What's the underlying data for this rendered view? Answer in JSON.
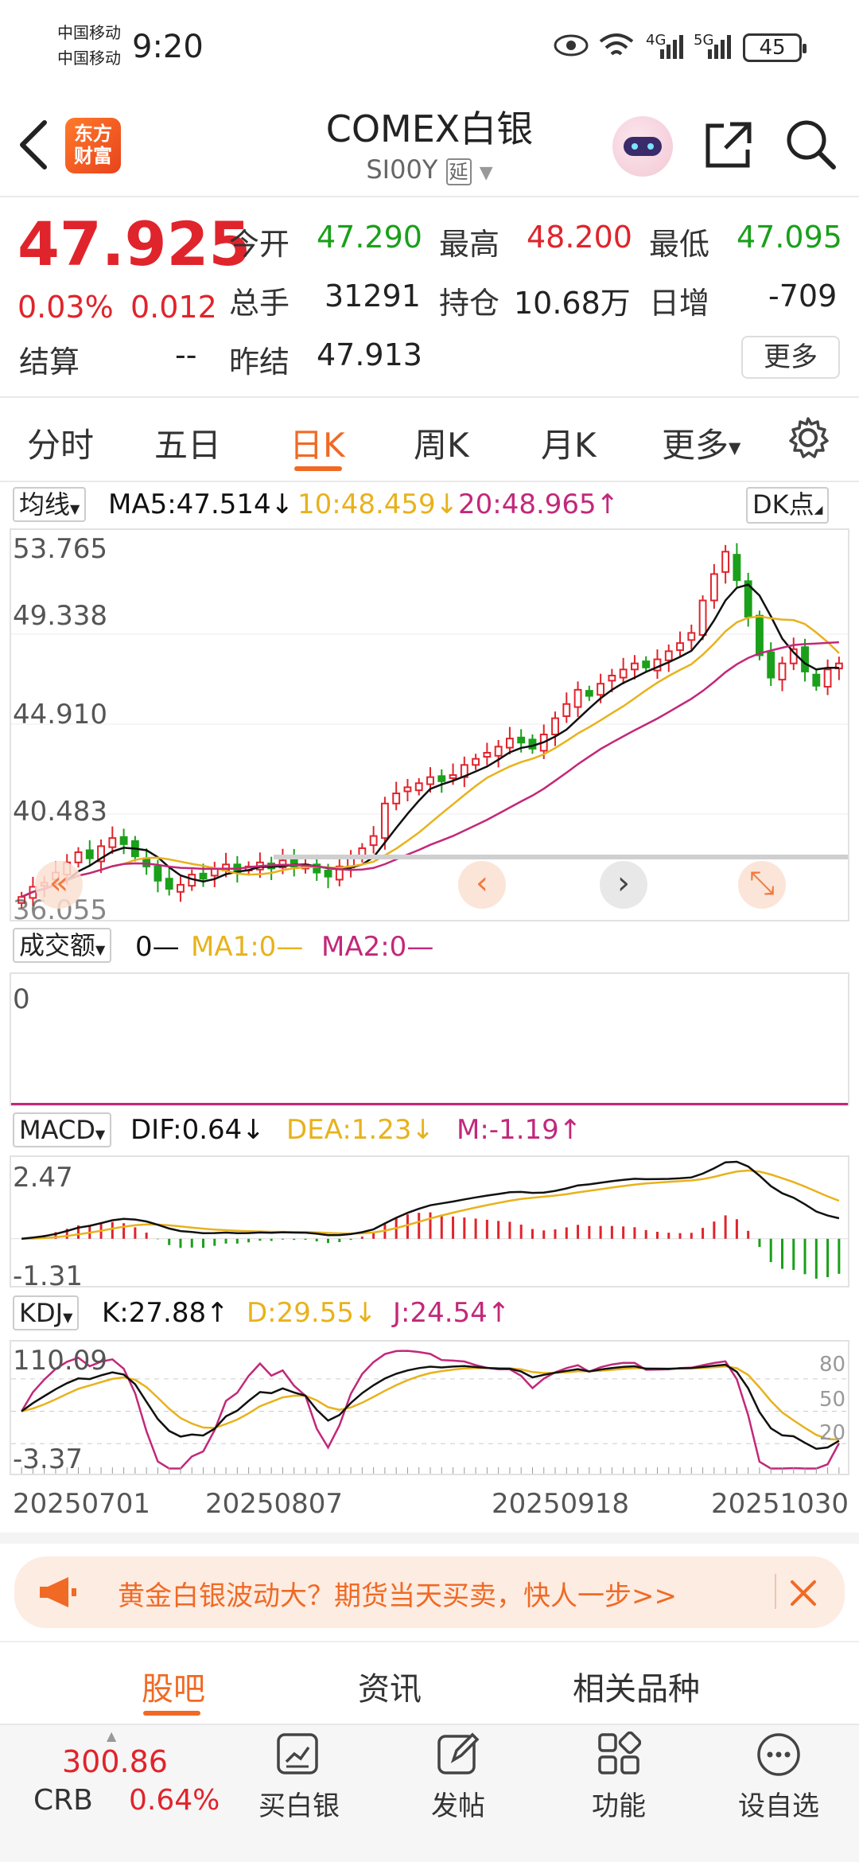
{
  "status_bar": {
    "carrier_1": "中国移动",
    "carrier_2": "中国移动",
    "time": "9:20",
    "net_1": "4G",
    "net_2": "5G",
    "battery": "45"
  },
  "header": {
    "logo_text": "东方\n财富",
    "title": "COMEX白银",
    "code": "SI00Y",
    "delay_tag": "延"
  },
  "quote": {
    "price": "47.925",
    "change_pct": "0.03%",
    "change": "0.012",
    "open_label": "今开",
    "open": "47.290",
    "high_label": "最高",
    "high": "48.200",
    "low_label": "最低",
    "low": "47.095",
    "volume_label": "总手",
    "volume": "31291",
    "oi_label": "持仓",
    "oi": "10.68万",
    "daily_inc_label": "日增",
    "daily_inc": "-709",
    "settle_label": "结算",
    "settle": "--",
    "prev_settle_label": "昨结",
    "prev_settle": "47.913",
    "more_label": "更多"
  },
  "period_tabs": {
    "items": [
      "分时",
      "五日",
      "日K",
      "周K",
      "月K",
      "更多"
    ],
    "active_index": 2
  },
  "ma_bar": {
    "select": "均线",
    "ma5": "MA5:47.514↓",
    "ma10": "10:48.459↓",
    "ma20": "20:48.965↑",
    "dk_label": "DK点"
  },
  "kline_axis": {
    "y_ticks": [
      "53.765",
      "49.338",
      "44.910",
      "40.483",
      "36.055"
    ]
  },
  "vol_bar": {
    "select": "成交额",
    "v0": "0—",
    "ma1": "MA1:0—",
    "ma2": "MA2:0—",
    "y_tick": "0"
  },
  "macd_bar": {
    "select": "MACD",
    "dif": "DIF:0.64↓",
    "dea": "DEA:1.23↓",
    "m": "M:-1.19↑",
    "y_top": "2.47",
    "y_bottom": "-1.31"
  },
  "kdj_bar": {
    "select": "KDJ",
    "k": "K:27.88↑",
    "d": "D:29.55↓",
    "j": "J:24.54↑",
    "y_top": "110.09",
    "y_bottom": "-3.37",
    "levels": [
      "80",
      "50",
      "20"
    ]
  },
  "x_axis": {
    "dates": [
      "20250701",
      "20250807",
      "20250918",
      "20251030"
    ]
  },
  "banner": {
    "text": "黄金白银波动大？期货当天买卖，快人一步>>"
  },
  "bottom_tabs": {
    "items": [
      "股吧",
      "资讯",
      "相关品种"
    ],
    "active_index": 0
  },
  "toolbar": {
    "crb_value": "300.86",
    "crb_label": "CRB",
    "crb_change": "0.64%",
    "buy": "买白银",
    "post": "发帖",
    "func": "功能",
    "watch": "设自选"
  },
  "colors": {
    "red": "#e0242c",
    "green": "#1aa01a",
    "accent": "#f06a25",
    "ma5": "#111111",
    "ma10": "#e8b21c",
    "ma20": "#c2287a"
  },
  "chart_data": {
    "type": "candlestick",
    "title": "COMEX白银",
    "x_ticks": [
      "20250701",
      "20250807",
      "20250918",
      "20251030"
    ],
    "ylim": [
      36.055,
      53.765
    ],
    "y_ticks": [
      53.765,
      49.338,
      44.91,
      40.483,
      36.055
    ],
    "close_series": [
      36.4,
      36.9,
      37.1,
      37.6,
      38.1,
      38.6,
      38.3,
      38.9,
      39.3,
      39.0,
      38.4,
      37.9,
      37.2,
      36.8,
      37.0,
      37.5,
      37.3,
      37.8,
      38.0,
      37.6,
      37.9,
      38.1,
      37.8,
      38.2,
      37.9,
      38.0,
      37.6,
      37.4,
      37.9,
      38.3,
      38.8,
      39.4,
      41.0,
      41.5,
      41.8,
      42.0,
      42.3,
      42.1,
      42.4,
      42.9,
      43.2,
      43.5,
      43.8,
      44.2,
      44.0,
      43.7,
      44.4,
      45.2,
      45.9,
      46.6,
      46.3,
      46.9,
      47.3,
      47.6,
      47.9,
      47.7,
      48.1,
      48.5,
      48.9,
      49.4,
      51.0,
      52.3,
      53.4,
      52.0,
      50.2,
      48.3,
      47.2,
      47.9,
      48.6,
      47.5,
      46.8,
      47.6,
      47.9
    ],
    "ma5_last": 47.514,
    "ma10_last": 48.459,
    "ma20_last": 48.965,
    "volume": 0,
    "macd": {
      "dif": 0.64,
      "dea": 1.23,
      "m": -1.19,
      "ylim": [
        -1.31,
        2.47
      ]
    },
    "kdj": {
      "k": 27.88,
      "d": 29.55,
      "j": 24.54,
      "ylim": [
        -3.37,
        110.09
      ]
    }
  }
}
